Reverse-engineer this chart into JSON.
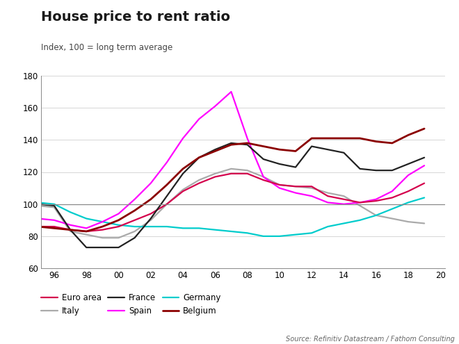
{
  "title": "House price to rent ratio",
  "subtitle": "Index, 100 = long term average",
  "source": "Source: Refinitiv Datastream / Fathom Consulting",
  "ylim": [
    60,
    180
  ],
  "yticks": [
    60,
    80,
    100,
    120,
    140,
    160,
    180
  ],
  "xtick_labels": [
    "96",
    "98",
    "00",
    "02",
    "04",
    "06",
    "08",
    "10",
    "12",
    "14",
    "16",
    "18",
    "20"
  ],
  "xtick_values": [
    1996,
    1998,
    2000,
    2002,
    2004,
    2006,
    2008,
    2010,
    2012,
    2014,
    2016,
    2018,
    2020
  ],
  "hline": 100,
  "series": {
    "Euro area": {
      "color": "#d4004c",
      "linewidth": 1.6,
      "x": [
        1995,
        1996,
        1997,
        1998,
        1999,
        2000,
        2001,
        2002,
        2003,
        2004,
        2005,
        2006,
        2007,
        2008,
        2009,
        2010,
        2011,
        2012,
        2013,
        2014,
        2015,
        2016,
        2017,
        2018,
        2019
      ],
      "y": [
        86,
        86,
        84,
        83,
        84,
        86,
        90,
        94,
        100,
        108,
        113,
        117,
        119,
        119,
        115,
        112,
        111,
        111,
        105,
        103,
        101,
        102,
        104,
        108,
        113
      ]
    },
    "Spain": {
      "color": "#ff00ff",
      "linewidth": 1.6,
      "x": [
        1995,
        1996,
        1997,
        1998,
        1999,
        2000,
        2001,
        2002,
        2003,
        2004,
        2005,
        2006,
        2007,
        2008,
        2009,
        2010,
        2011,
        2012,
        2013,
        2014,
        2015,
        2016,
        2017,
        2018,
        2019
      ],
      "y": [
        91,
        90,
        87,
        85,
        89,
        94,
        103,
        113,
        126,
        141,
        153,
        161,
        170,
        141,
        117,
        110,
        107,
        105,
        101,
        100,
        101,
        103,
        108,
        118,
        124
      ]
    },
    "Italy": {
      "color": "#aaaaaa",
      "linewidth": 1.6,
      "x": [
        1995,
        1996,
        1997,
        1998,
        1999,
        2000,
        2001,
        2002,
        2003,
        2004,
        2005,
        2006,
        2007,
        2008,
        2009,
        2010,
        2011,
        2012,
        2013,
        2014,
        2015,
        2016,
        2017,
        2018,
        2019
      ],
      "y": [
        99,
        98,
        83,
        81,
        79,
        79,
        83,
        90,
        100,
        109,
        115,
        119,
        122,
        121,
        117,
        112,
        111,
        110,
        107,
        105,
        99,
        93,
        91,
        89,
        88
      ]
    },
    "Germany": {
      "color": "#00cccc",
      "linewidth": 1.6,
      "x": [
        1995,
        1996,
        1997,
        1998,
        1999,
        2000,
        2001,
        2002,
        2003,
        2004,
        2005,
        2006,
        2007,
        2008,
        2009,
        2010,
        2011,
        2012,
        2013,
        2014,
        2015,
        2016,
        2017,
        2018,
        2019
      ],
      "y": [
        101,
        100,
        95,
        91,
        89,
        87,
        86,
        86,
        86,
        85,
        85,
        84,
        83,
        82,
        80,
        80,
        81,
        82,
        86,
        88,
        90,
        93,
        97,
        101,
        104
      ]
    },
    "France": {
      "color": "#222222",
      "linewidth": 1.6,
      "x": [
        1995,
        1996,
        1997,
        1998,
        1999,
        2000,
        2001,
        2002,
        2003,
        2004,
        2005,
        2006,
        2007,
        2008,
        2009,
        2010,
        2011,
        2012,
        2013,
        2014,
        2015,
        2016,
        2017,
        2018,
        2019
      ],
      "y": [
        100,
        99,
        84,
        73,
        73,
        73,
        79,
        91,
        105,
        119,
        129,
        134,
        138,
        137,
        128,
        125,
        123,
        136,
        134,
        132,
        122,
        121,
        121,
        125,
        129
      ]
    },
    "Belgium": {
      "color": "#8b0000",
      "linewidth": 2.0,
      "x": [
        1995,
        1996,
        1997,
        1998,
        1999,
        2000,
        2001,
        2002,
        2003,
        2004,
        2005,
        2006,
        2007,
        2008,
        2009,
        2010,
        2011,
        2012,
        2013,
        2014,
        2015,
        2016,
        2017,
        2018,
        2019
      ],
      "y": [
        86,
        85,
        84,
        83,
        86,
        90,
        96,
        103,
        112,
        122,
        129,
        133,
        137,
        138,
        136,
        134,
        133,
        141,
        141,
        141,
        141,
        139,
        138,
        143,
        147
      ]
    }
  },
  "legend_order": [
    "Euro area",
    "Italy",
    "France",
    "Spain",
    "Germany",
    "Belgium"
  ],
  "background_color": "#ffffff",
  "grid_color": "#d0d0d0"
}
